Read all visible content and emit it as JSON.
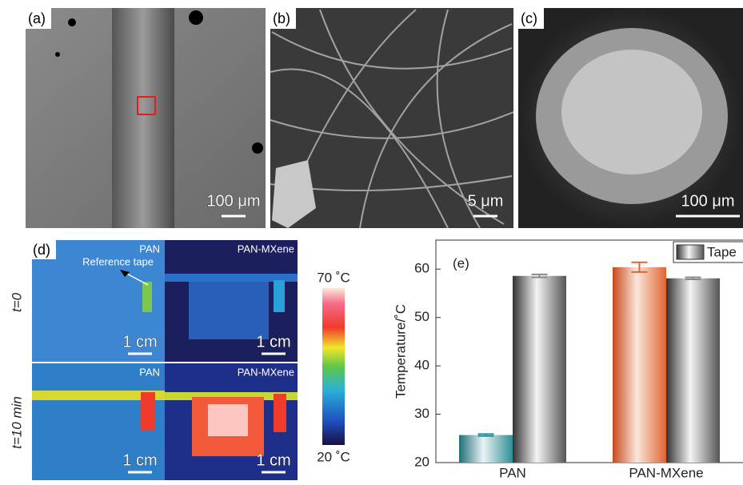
{
  "panels": {
    "a": {
      "label": "(a)",
      "scale": "100 μm"
    },
    "b": {
      "label": "(b)",
      "scale": "5 μm"
    },
    "c": {
      "label": "(c)",
      "scale": "100 μm"
    },
    "d": {
      "label": "(d)",
      "rows": [
        "t=0",
        "t=10 min"
      ],
      "images": [
        {
          "title": "PAN",
          "scale": "1 cm"
        },
        {
          "title": "PAN-MXene",
          "scale": "1 cm"
        },
        {
          "title": "PAN",
          "scale": "1 cm"
        },
        {
          "title": "PAN-MXene",
          "scale": "1 cm"
        }
      ],
      "annotation": "Reference tape",
      "colorbar_max": "70 ˚C",
      "colorbar_min": "20 ˚C"
    }
  },
  "chart_data": {
    "type": "bar",
    "label": "(e)",
    "y_label": "Temperature/˚C",
    "categories": [
      "PAN",
      "PAN-MXene"
    ],
    "series": [
      {
        "colors": [
          "#2f8f98",
          "#e0642e"
        ],
        "values": [
          25.7,
          60.4
        ],
        "errors": [
          0.2,
          1.0
        ]
      },
      {
        "name": "Tape",
        "color": "#8a8a8a",
        "values": [
          58.6,
          58.1
        ],
        "errors": [
          0.3,
          0.2
        ]
      }
    ],
    "ylim": [
      20,
      66
    ],
    "yticks": [
      20,
      30,
      40,
      50,
      60
    ],
    "legend": "top-right"
  }
}
